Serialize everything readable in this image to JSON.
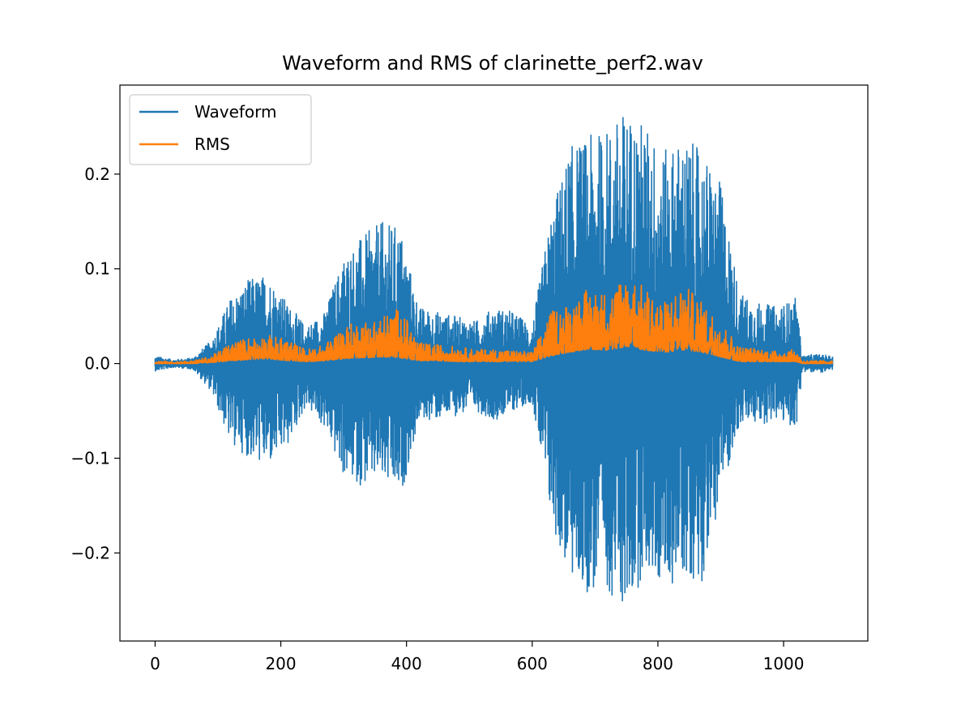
{
  "chart_data": {
    "type": "line",
    "title": "Waveform and RMS of clarinette_perf2.wav",
    "xlabel": "",
    "ylabel": "",
    "xlim": [
      -56,
      1134
    ],
    "ylim": [
      -0.293,
      0.294
    ],
    "xticks": [
      0,
      200,
      400,
      600,
      800,
      1000
    ],
    "xtick_labels": [
      "0",
      "200",
      "400",
      "600",
      "800",
      "1000"
    ],
    "yticks": [
      -0.2,
      -0.1,
      0.0,
      0.1,
      0.2
    ],
    "ytick_labels": [
      "−0.2",
      "−0.1",
      "0.0",
      "0.1",
      "0.2"
    ],
    "grid": false,
    "legend_position": "upper-left",
    "x": [
      0,
      30,
      60,
      90,
      120,
      150,
      180,
      210,
      240,
      270,
      300,
      330,
      360,
      390,
      420,
      450,
      480,
      510,
      540,
      570,
      600,
      630,
      660,
      690,
      720,
      750,
      780,
      810,
      840,
      870,
      900,
      930,
      960,
      990,
      1020,
      1030,
      1050,
      1078
    ],
    "series": [
      {
        "name": "Waveform",
        "color": "#1f77b4",
        "envelope_max": [
          0.008,
          0.004,
          0.006,
          0.025,
          0.07,
          0.09,
          0.095,
          0.065,
          0.04,
          0.055,
          0.115,
          0.135,
          0.15,
          0.145,
          0.06,
          0.055,
          0.05,
          0.045,
          0.06,
          0.055,
          0.04,
          0.16,
          0.23,
          0.24,
          0.25,
          0.27,
          0.255,
          0.225,
          0.24,
          0.225,
          0.19,
          0.075,
          0.065,
          0.06,
          0.07,
          0.008,
          0.01,
          0.008
        ],
        "envelope_min": [
          -0.008,
          -0.004,
          -0.006,
          -0.03,
          -0.085,
          -0.1,
          -0.11,
          -0.09,
          -0.045,
          -0.07,
          -0.12,
          -0.13,
          -0.125,
          -0.145,
          -0.06,
          -0.06,
          -0.055,
          -0.05,
          -0.06,
          -0.05,
          -0.04,
          -0.17,
          -0.23,
          -0.245,
          -0.24,
          -0.265,
          -0.22,
          -0.24,
          -0.225,
          -0.23,
          -0.14,
          -0.065,
          -0.065,
          -0.06,
          -0.07,
          -0.008,
          -0.01,
          -0.008
        ]
      },
      {
        "name": "RMS",
        "color": "#ff7f0e",
        "values_max": [
          0.003,
          0.002,
          0.003,
          0.008,
          0.022,
          0.028,
          0.03,
          0.026,
          0.015,
          0.02,
          0.04,
          0.045,
          0.05,
          0.06,
          0.022,
          0.02,
          0.018,
          0.015,
          0.015,
          0.014,
          0.012,
          0.055,
          0.065,
          0.08,
          0.075,
          0.097,
          0.08,
          0.065,
          0.085,
          0.065,
          0.045,
          0.018,
          0.016,
          0.013,
          0.015,
          0.003,
          0.003,
          0.003
        ],
        "values_min": [
          0.0,
          0.0,
          0.0,
          0.001,
          0.003,
          0.004,
          0.005,
          0.003,
          0.002,
          0.003,
          0.005,
          0.006,
          0.007,
          0.006,
          0.003,
          0.003,
          0.002,
          0.002,
          0.002,
          0.002,
          0.002,
          0.008,
          0.012,
          0.015,
          0.014,
          0.018,
          0.014,
          0.012,
          0.014,
          0.012,
          0.007,
          0.002,
          0.002,
          0.002,
          0.002,
          0.0,
          0.0,
          0.0
        ]
      }
    ]
  }
}
